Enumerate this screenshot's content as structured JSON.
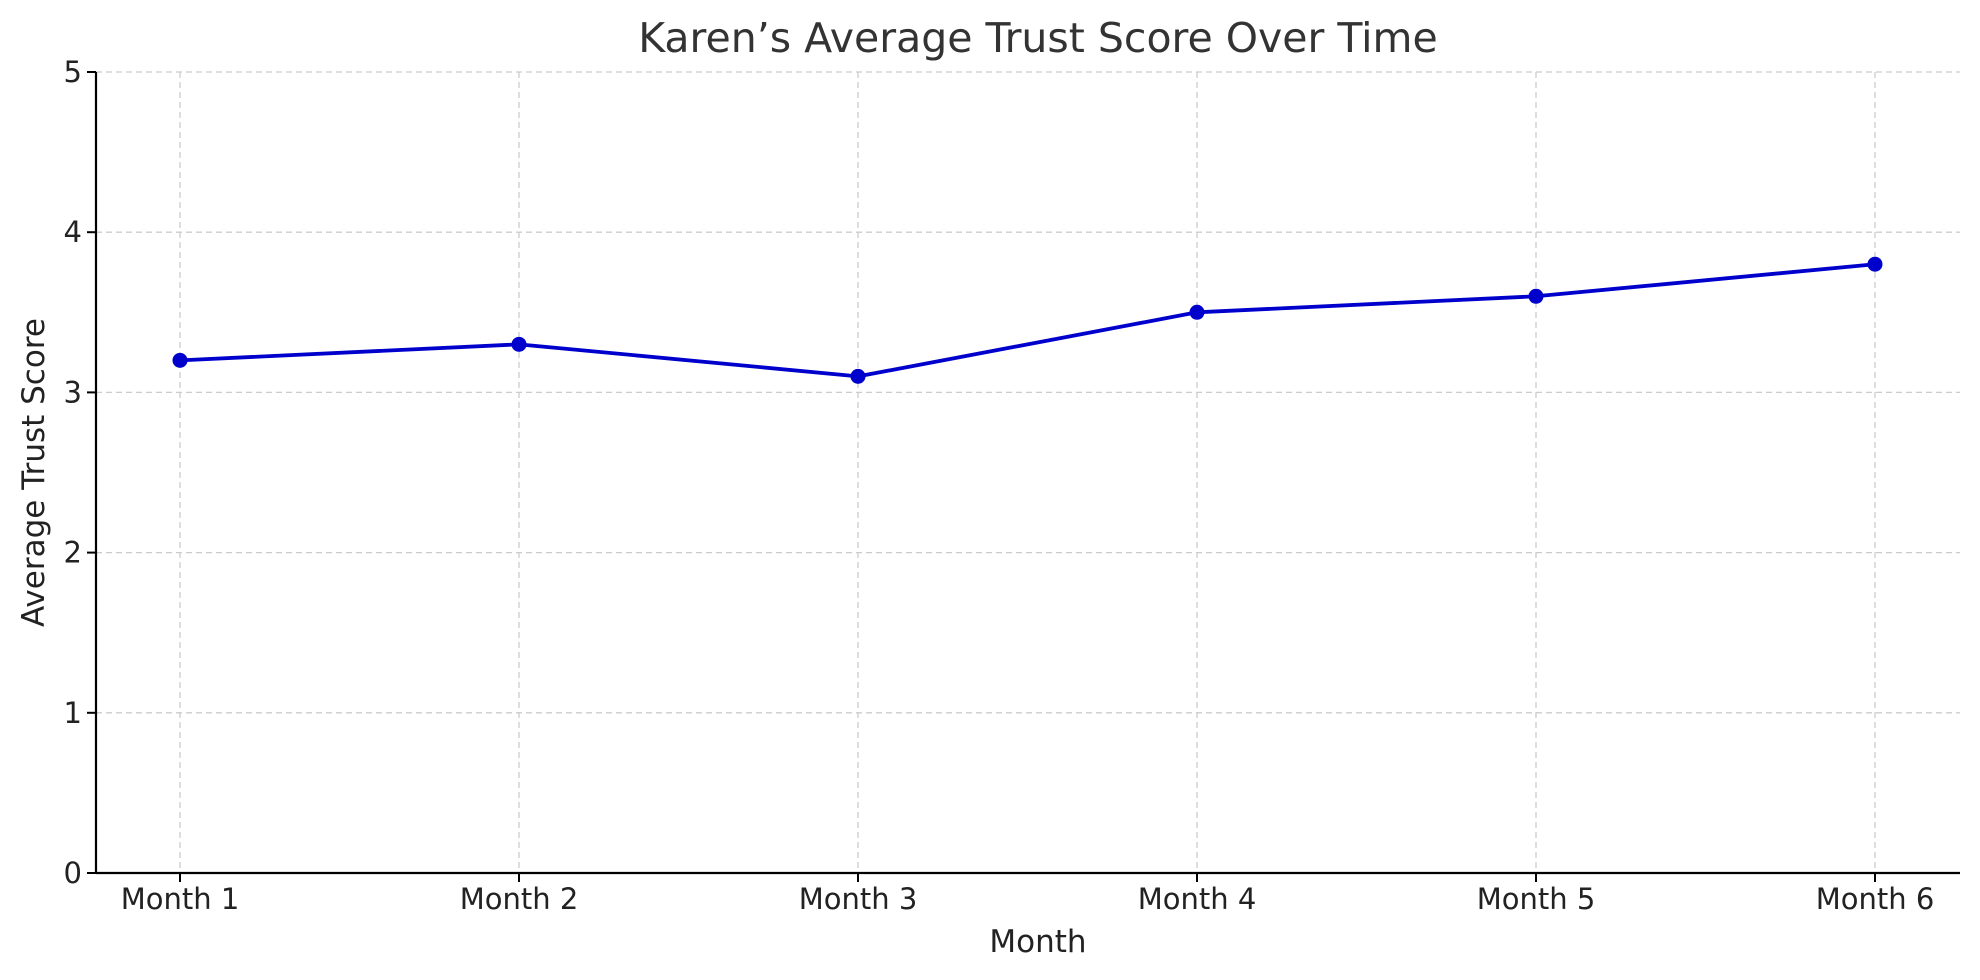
{
  "chart_data": {
    "type": "line",
    "title": "Karen’s Average Trust Score Over Time",
    "xlabel": "Month",
    "ylabel": "Average Trust Score",
    "categories": [
      "Month 1",
      "Month 2",
      "Month 3",
      "Month 4",
      "Month 5",
      "Month 6"
    ],
    "series": [
      {
        "values": [
          3.2,
          3.3,
          3.1,
          3.5,
          3.6,
          3.8
        ],
        "color": "#0000cc",
        "marker": "circle"
      }
    ],
    "ylim": [
      0,
      5
    ],
    "yticks": [
      0,
      1,
      2,
      3,
      4,
      5
    ],
    "grid": true,
    "grid_style": "dashed",
    "legend": false
  }
}
